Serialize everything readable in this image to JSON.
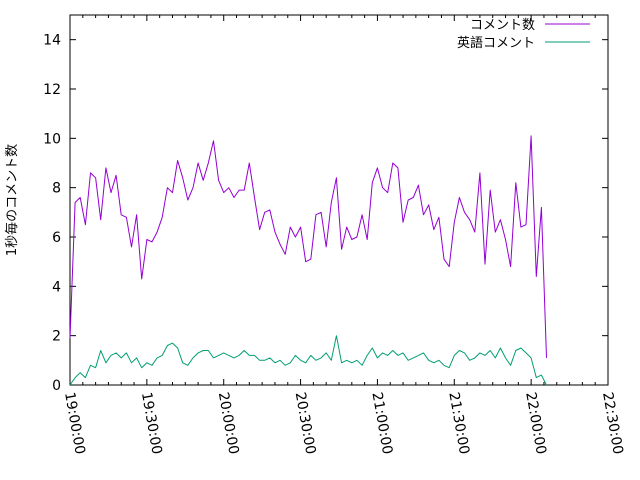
{
  "chart_data": {
    "type": "line",
    "title": "",
    "xlabel": "",
    "ylabel": "1秒毎のコメント数",
    "xlim_seconds": [
      0,
      12600
    ],
    "ylim": [
      0,
      15
    ],
    "grid": false,
    "legend": "top-right",
    "yticks": [
      {
        "value": 0,
        "label": "0"
      },
      {
        "value": 2,
        "label": "2"
      },
      {
        "value": 4,
        "label": "4"
      },
      {
        "value": 6,
        "label": "6"
      },
      {
        "value": 8,
        "label": "8"
      },
      {
        "value": 10,
        "label": "10"
      },
      {
        "value": 12,
        "label": "12"
      },
      {
        "value": 14,
        "label": "14"
      }
    ],
    "xticks": [
      {
        "value": 0,
        "label": "19:00:00"
      },
      {
        "value": 1800,
        "label": "19:30:00"
      },
      {
        "value": 3600,
        "label": "20:00:00"
      },
      {
        "value": 5400,
        "label": "20:30:00"
      },
      {
        "value": 7200,
        "label": "21:00:00"
      },
      {
        "value": 9000,
        "label": "21:30:00"
      },
      {
        "value": 10800,
        "label": "22:00:00"
      },
      {
        "value": 12600,
        "label": "22:30:00"
      }
    ],
    "x_seconds": [
      0,
      120,
      240,
      360,
      480,
      600,
      720,
      840,
      960,
      1080,
      1200,
      1320,
      1440,
      1560,
      1680,
      1800,
      1920,
      2040,
      2160,
      2280,
      2400,
      2520,
      2640,
      2760,
      2880,
      3000,
      3120,
      3240,
      3360,
      3480,
      3600,
      3720,
      3840,
      3960,
      4080,
      4200,
      4320,
      4440,
      4560,
      4680,
      4800,
      4920,
      5040,
      5160,
      5280,
      5400,
      5520,
      5640,
      5760,
      5880,
      6000,
      6120,
      6240,
      6360,
      6480,
      6600,
      6720,
      6840,
      6960,
      7080,
      7200,
      7320,
      7440,
      7560,
      7680,
      7800,
      7920,
      8040,
      8160,
      8280,
      8400,
      8520,
      8640,
      8760,
      8880,
      9000,
      9120,
      9240,
      9360,
      9480,
      9600,
      9720,
      9840,
      9960,
      10080,
      10200,
      10320,
      10440,
      10560,
      10680,
      10800,
      10920,
      11040,
      11160
    ],
    "series": [
      {
        "name": "コメント数",
        "color": "#9400d3",
        "values": [
          1.9,
          7.4,
          7.6,
          6.5,
          8.6,
          8.4,
          6.7,
          8.8,
          7.8,
          8.5,
          6.9,
          6.8,
          5.6,
          6.9,
          4.3,
          5.9,
          5.8,
          6.2,
          6.8,
          8.0,
          7.8,
          9.1,
          8.4,
          7.5,
          8.0,
          9.0,
          8.3,
          9.0,
          9.9,
          8.3,
          7.8,
          8.0,
          7.6,
          7.9,
          7.9,
          9.0,
          7.6,
          6.3,
          7.0,
          7.1,
          6.2,
          5.7,
          5.3,
          6.4,
          6.0,
          6.4,
          5.0,
          5.1,
          6.9,
          7.0,
          5.6,
          7.4,
          8.4,
          5.5,
          6.4,
          5.9,
          6.0,
          6.9,
          5.9,
          8.2,
          8.8,
          8.0,
          7.8,
          9.0,
          8.8,
          6.6,
          7.5,
          7.6,
          8.1,
          6.9,
          7.3,
          6.3,
          6.8,
          5.1,
          4.8,
          6.6,
          7.6,
          7.0,
          6.7,
          6.2,
          8.6,
          4.9,
          7.9,
          6.2,
          6.7,
          5.9,
          4.8,
          8.2,
          6.4,
          6.5,
          10.1,
          4.4,
          7.2,
          1.1
        ]
      },
      {
        "name": "英語コメント",
        "color": "#009e73",
        "values": [
          0.0,
          0.3,
          0.5,
          0.3,
          0.8,
          0.7,
          1.4,
          0.9,
          1.2,
          1.3,
          1.1,
          1.3,
          0.9,
          1.1,
          0.7,
          0.9,
          0.8,
          1.1,
          1.2,
          1.6,
          1.7,
          1.5,
          0.9,
          0.8,
          1.1,
          1.3,
          1.4,
          1.4,
          1.1,
          1.2,
          1.3,
          1.2,
          1.1,
          1.2,
          1.4,
          1.2,
          1.2,
          1.0,
          1.0,
          1.1,
          0.9,
          1.0,
          0.8,
          0.9,
          1.2,
          1.0,
          0.9,
          1.2,
          1.0,
          1.1,
          1.3,
          1.0,
          2.0,
          0.9,
          1.0,
          0.9,
          1.0,
          0.8,
          1.2,
          1.5,
          1.1,
          1.3,
          1.2,
          1.4,
          1.2,
          1.3,
          1.0,
          1.1,
          1.2,
          1.3,
          1.0,
          0.9,
          1.0,
          0.8,
          0.7,
          1.2,
          1.4,
          1.3,
          1.0,
          1.1,
          1.3,
          1.2,
          1.4,
          1.1,
          1.5,
          1.1,
          0.8,
          1.4,
          1.5,
          1.3,
          1.1,
          0.3,
          0.4,
          0.0
        ]
      }
    ]
  }
}
